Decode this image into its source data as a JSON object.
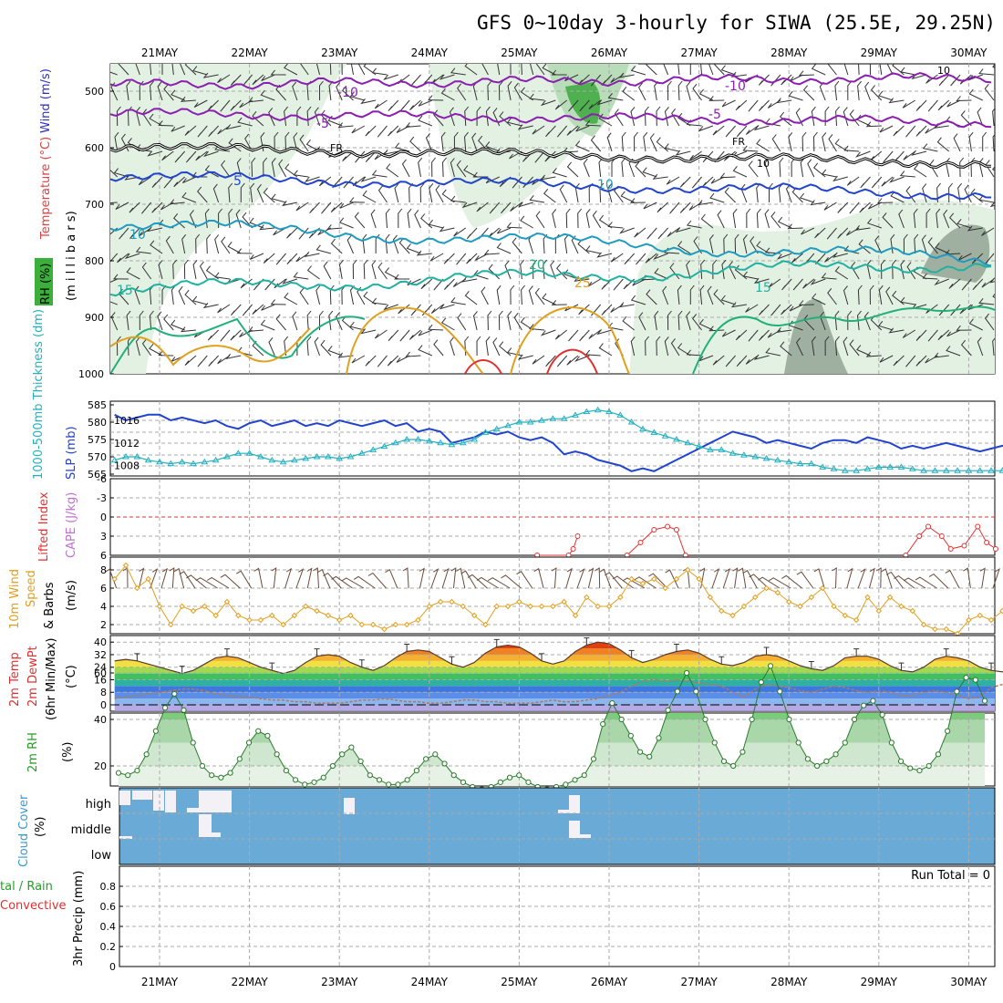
{
  "title": "GFS 0~10day 3-hourly for SIWA (25.5E, 29.25N)",
  "dates": [
    "21MAY",
    "22MAY",
    "23MAY",
    "24MAY",
    "25MAY",
    "26MAY",
    "27MAY",
    "28MAY",
    "29MAY",
    "30MAY"
  ],
  "colors": {
    "violet": "#8a1fb0",
    "blue": "#2244cc",
    "cyan": "#22b0c0",
    "teal": "#22b07a",
    "orange": "#e0a020",
    "red": "#e03030",
    "green": "#3aaa3a",
    "cloud": "#6aaad6"
  },
  "panels": {
    "profile": {
      "label_rh": "RH (%)",
      "label_temp": "Temperature (°C)",
      "label_wind": "Wind (m/s)",
      "axis_unit": "(m i l l i b a r s)",
      "ticks": [
        "500",
        "600",
        "700",
        "800",
        "900",
        "1000"
      ],
      "labels": [
        "-10",
        "-5",
        "FR",
        "5",
        "10",
        "15",
        "20",
        "25",
        "-10",
        "-5",
        "FR",
        "10",
        "15",
        "10",
        "10"
      ]
    },
    "slp": {
      "label_thick": "1000-500mb Thickness (dm)",
      "label_slp": "SLP (mb)",
      "left_ticks": [
        "585",
        "580",
        "575",
        "570",
        "565"
      ],
      "right_ticks": [
        "1016",
        "1012",
        "1008"
      ]
    },
    "cape": {
      "label_li": "Lifted Index",
      "label_cape": "CAPE (J/kg)",
      "ticks": [
        "-6",
        "-3",
        "0",
        "3",
        "6"
      ]
    },
    "wind10": {
      "label_a": "10m Wind",
      "label_b": "Speed",
      "label_c": "& Barbs",
      "unit": "(m/s)",
      "ticks": [
        "8",
        "6",
        "4",
        "2"
      ]
    },
    "temp2m": {
      "label_a": "2m Temp",
      "label_b": "2m DewPt",
      "label_c": "(6hr Min/Max)",
      "unit": "(°C)",
      "ticks": [
        "40",
        "32",
        "24",
        "16",
        "8",
        "0"
      ]
    },
    "rh2m": {
      "label": "2m RH",
      "unit": "(%)",
      "ticks": [
        "60",
        "40",
        "20"
      ]
    },
    "cloud": {
      "label": "Cloud Cover",
      "unit": "(%)",
      "levels": [
        "high",
        "middle",
        "low"
      ]
    },
    "precip": {
      "label_a": "tal / Rain",
      "label_b": "Convective",
      "label_c": "3hr Precip (mm)",
      "run_total": "Run Total = 0",
      "ticks": [
        "0.8",
        "0.6",
        "0.4",
        "0.2",
        "0"
      ]
    }
  },
  "chart_data": [
    {
      "type": "line",
      "title": "SLP / 1000-500mb Thickness",
      "x_unit": "3-hour steps from 20MAY 12Z",
      "series": [
        {
          "name": "SLP (mb)",
          "values": [
            1017,
            1016,
            1016.5,
            1017,
            1017,
            1016,
            1016.5,
            1016,
            1015.5,
            1016,
            1015,
            1014.5,
            1015.5,
            1016,
            1015,
            1015.5,
            1016,
            1015,
            1015.5,
            1015,
            1016,
            1015.5,
            1015,
            1015.5,
            1016,
            1015,
            1015.5,
            1014,
            1014.5,
            1014,
            1012,
            1012.5,
            1013,
            1014,
            1013.5,
            1014,
            1013,
            1012.5,
            1013,
            1012,
            1010,
            1010.5,
            1010,
            1009,
            1008.5,
            1008,
            1007,
            1007.5,
            1007,
            1008,
            1009,
            1010,
            1011,
            1012,
            1013,
            1014,
            1013.5,
            1013,
            1012,
            1012.5,
            1012,
            1011.5,
            1011,
            1012,
            1012.5,
            1012.5,
            1012,
            1013,
            1012.5,
            1012,
            1011,
            1011.5,
            1011,
            1011.5,
            1012,
            1011.5,
            1011,
            1010.5,
            1011,
            1011.5,
            1012
          ]
        },
        {
          "name": "1000-500mb Thickness (dm)",
          "values": [
            569,
            570,
            570,
            569,
            568.5,
            568,
            568.5,
            568,
            568.5,
            569,
            570,
            571,
            571,
            570,
            569,
            568.5,
            569,
            569.5,
            570,
            570,
            569.5,
            570,
            571,
            572,
            573,
            574,
            575,
            575,
            574.5,
            574,
            573.5,
            574,
            575,
            577,
            578,
            579,
            580,
            580,
            580.5,
            581,
            581,
            582,
            583,
            583.5,
            583,
            582,
            580,
            578,
            577,
            576,
            575,
            574,
            573,
            572,
            572,
            571,
            570.5,
            570,
            569.5,
            569,
            568.5,
            568,
            568,
            567,
            566.5,
            566,
            566,
            566.5,
            567,
            567,
            567,
            566.5,
            566,
            566,
            566,
            566,
            566,
            566,
            566,
            566,
            566
          ]
        }
      ]
    },
    {
      "type": "line",
      "title": "Lifted Index",
      "series": [
        {
          "name": "Lifted Index",
          "x": [
            25.2,
            25.55,
            25.6,
            25.65,
            26.2,
            26.35,
            26.5,
            26.65,
            26.75,
            26.85,
            29.3,
            29.45,
            29.55,
            29.7,
            29.8,
            29.95,
            30.1,
            30.2,
            30.3
          ],
          "values": [
            6,
            6,
            5,
            3,
            6,
            4,
            2,
            1.5,
            2,
            6,
            6,
            3,
            1.5,
            3,
            5,
            4.5,
            1.5,
            4,
            5
          ]
        }
      ]
    },
    {
      "type": "line",
      "title": "10m Wind Speed",
      "series": [
        {
          "name": "10m Wind Speed (m/s)",
          "values": [
            7,
            8.5,
            6,
            7,
            4,
            2,
            4,
            3.5,
            4,
            3,
            4.5,
            3,
            2.5,
            2.5,
            3,
            2,
            3,
            4,
            3.5,
            3,
            2.5,
            3,
            2,
            2,
            1.5,
            2,
            2,
            2.5,
            4,
            4.5,
            4.5,
            4,
            3,
            2,
            4,
            4,
            4.5,
            4,
            4,
            4,
            4.5,
            3,
            5,
            4,
            4,
            5,
            7,
            6.5,
            7,
            6,
            7,
            8,
            7,
            5,
            3.5,
            3,
            4,
            5,
            6,
            5.5,
            4.5,
            4,
            5,
            6,
            4,
            3,
            2.5,
            5,
            3.5,
            5,
            4,
            3.5,
            2,
            1.5,
            1.5,
            1,
            2.5,
            3,
            2.5,
            3.5,
            4,
            3.5,
            2,
            1.5
          ]
        }
      ]
    },
    {
      "type": "area",
      "title": "2m Temp / 2m DewPt",
      "series": [
        {
          "name": "2m Temp (°C)",
          "x_start": 20.5,
          "values": [
            28,
            29,
            28,
            26,
            24,
            22,
            20,
            22,
            26,
            30,
            31,
            30,
            27,
            24,
            22,
            20,
            22,
            27,
            31,
            32,
            31,
            27,
            24,
            22,
            25,
            30,
            34,
            35,
            34,
            30,
            26,
            24,
            27,
            33,
            37,
            38,
            37,
            33,
            28,
            26,
            28,
            34,
            38,
            40,
            39,
            35,
            30,
            27,
            29,
            32,
            34,
            35,
            33,
            29,
            26,
            25,
            27,
            31,
            32,
            31,
            28,
            25,
            23,
            22,
            25,
            30,
            31,
            31,
            29,
            25,
            22,
            21,
            24,
            29,
            31,
            30,
            28,
            24,
            22,
            21,
            23
          ]
        },
        {
          "name": "2m DewPt (°C)",
          "x_start": 20.5,
          "values": [
            4,
            5,
            6,
            7,
            8,
            9,
            10,
            10,
            9,
            7,
            6,
            5,
            5,
            4,
            3,
            3,
            2,
            2,
            1,
            1,
            1,
            2,
            3,
            3,
            4,
            3,
            2,
            2,
            1,
            1,
            2,
            3,
            3,
            2,
            2,
            1,
            1,
            1,
            2,
            3,
            2,
            2,
            3,
            4,
            6,
            8,
            12,
            15,
            16,
            15,
            16,
            15,
            14,
            13,
            12,
            8,
            5,
            10,
            13,
            12,
            11,
            9,
            8,
            10,
            12,
            11,
            9,
            8,
            9,
            8,
            6,
            6,
            8,
            9,
            8,
            6,
            4,
            5,
            11,
            13,
            12
          ]
        }
      ]
    },
    {
      "type": "area",
      "title": "2m RH",
      "series": [
        {
          "name": "2m RH (%)",
          "x_start": 20.5,
          "values": [
            17,
            16,
            18,
            25,
            35,
            45,
            51,
            44,
            30,
            20,
            16,
            15,
            17,
            23,
            30,
            35,
            33,
            25,
            18,
            14,
            12,
            13,
            15,
            20,
            25,
            28,
            22,
            16,
            14,
            12,
            12,
            14,
            18,
            23,
            25,
            21,
            16,
            13,
            11,
            10,
            11,
            13,
            15,
            16,
            13,
            11,
            10,
            11,
            12,
            14,
            16,
            23,
            38,
            47,
            40,
            33,
            26,
            24,
            32,
            44,
            52,
            60,
            52,
            40,
            30,
            22,
            20,
            26,
            40,
            56,
            63,
            52,
            40,
            30,
            23,
            20,
            22,
            25,
            30,
            40,
            46,
            48,
            42,
            30,
            22,
            19,
            18,
            20,
            25,
            35,
            52,
            58,
            57,
            48
          ]
        }
      ]
    },
    {
      "type": "bar",
      "title": "3hr Precip",
      "ylim": [
        0,
        0.9
      ],
      "values": []
    }
  ]
}
